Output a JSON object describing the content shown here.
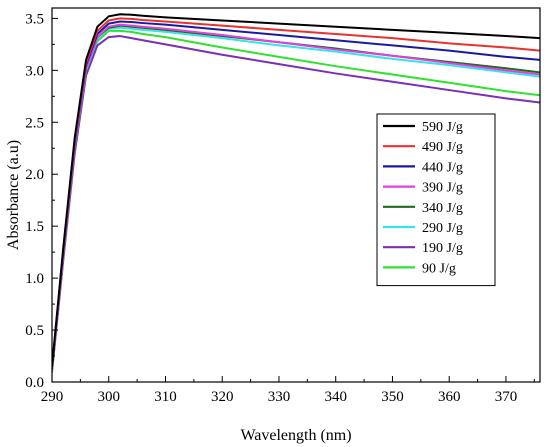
{
  "chart_data": {
    "type": "line",
    "xlabel": "Wavelength (nm)",
    "ylabel": "Absorbance (a.u)",
    "xlim": [
      290,
      376
    ],
    "ylim": [
      0.0,
      3.6
    ],
    "xticks": [
      290,
      300,
      310,
      320,
      330,
      340,
      350,
      360,
      370
    ],
    "xtick_labels": [
      "290",
      "300",
      "310",
      "320",
      "330",
      "340",
      "350",
      "360",
      "370"
    ],
    "yticks": [
      0.0,
      0.5,
      1.0,
      1.5,
      2.0,
      2.5,
      3.0,
      3.5
    ],
    "ytick_labels": [
      "0.0",
      "0.5",
      "1.0",
      "1.5",
      "2.0",
      "2.5",
      "3.0",
      "3.5"
    ],
    "grid": false,
    "legend_position": "right",
    "x": [
      290,
      292,
      294,
      296,
      298,
      300,
      302,
      304,
      306,
      310,
      320,
      330,
      340,
      350,
      360,
      370,
      376
    ],
    "series": [
      {
        "name": "590 J/g",
        "color": "#000000",
        "values": [
          0.15,
          1.3,
          2.35,
          3.1,
          3.42,
          3.52,
          3.54,
          3.535,
          3.525,
          3.51,
          3.48,
          3.45,
          3.42,
          3.39,
          3.36,
          3.33,
          3.31
        ]
      },
      {
        "name": "490 J/g",
        "color": "#e8322e",
        "values": [
          0.14,
          1.28,
          2.32,
          3.07,
          3.38,
          3.48,
          3.5,
          3.495,
          3.485,
          3.47,
          3.43,
          3.39,
          3.35,
          3.31,
          3.26,
          3.22,
          3.19
        ]
      },
      {
        "name": "440 J/g",
        "color": "#1a1aa0",
        "values": [
          0.13,
          1.26,
          2.3,
          3.05,
          3.35,
          3.45,
          3.47,
          3.465,
          3.455,
          3.44,
          3.39,
          3.34,
          3.29,
          3.24,
          3.19,
          3.13,
          3.1
        ]
      },
      {
        "name": "390 J/g",
        "color": "#e23fe0",
        "values": [
          0.12,
          1.24,
          2.28,
          3.02,
          3.32,
          3.42,
          3.44,
          3.43,
          3.42,
          3.4,
          3.34,
          3.27,
          3.2,
          3.14,
          3.07,
          3.0,
          2.96
        ]
      },
      {
        "name": "340 J/g",
        "color": "#1f6b1f",
        "values": [
          0.12,
          1.24,
          2.28,
          3.02,
          3.32,
          3.41,
          3.43,
          3.42,
          3.41,
          3.39,
          3.33,
          3.27,
          3.21,
          3.14,
          3.08,
          3.02,
          2.98
        ]
      },
      {
        "name": "290 J/g",
        "color": "#33e5e5",
        "values": [
          0.11,
          1.22,
          2.26,
          3.0,
          3.3,
          3.4,
          3.41,
          3.4,
          3.39,
          3.37,
          3.31,
          3.24,
          3.18,
          3.11,
          3.05,
          2.98,
          2.94
        ]
      },
      {
        "name": "190 J/g",
        "color": "#7a2fb5",
        "values": [
          0.1,
          1.18,
          2.2,
          2.95,
          3.24,
          3.32,
          3.33,
          3.31,
          3.29,
          3.25,
          3.15,
          3.06,
          2.97,
          2.89,
          2.81,
          2.73,
          2.69
        ]
      },
      {
        "name": "90 J/g",
        "color": "#2ee22e",
        "values": [
          0.1,
          1.2,
          2.24,
          2.98,
          3.28,
          3.38,
          3.38,
          3.37,
          3.35,
          3.32,
          3.22,
          3.13,
          3.04,
          2.96,
          2.88,
          2.8,
          2.76
        ]
      }
    ]
  }
}
